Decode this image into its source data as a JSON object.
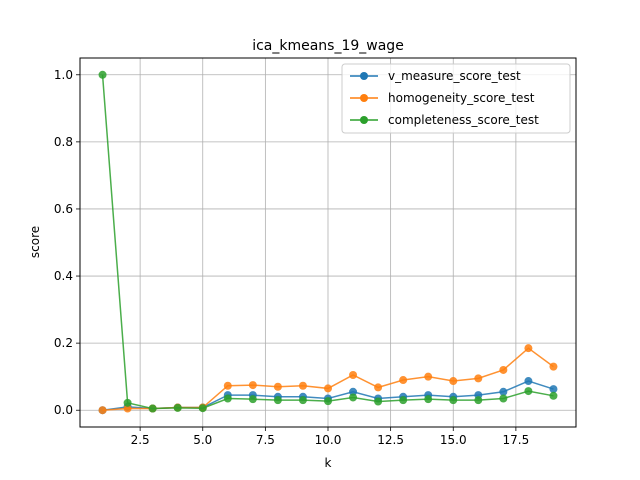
{
  "chart_data": {
    "type": "line",
    "title": "ica_kmeans_19_wage",
    "xlabel": "k",
    "ylabel": "score",
    "xlim": [
      0.1,
      19.9
    ],
    "ylim": [
      -0.05,
      1.05
    ],
    "xticks": [
      2.5,
      5.0,
      7.5,
      10.0,
      12.5,
      15.0,
      17.5
    ],
    "xtick_labels": [
      "2.5",
      "5.0",
      "7.5",
      "10.0",
      "12.5",
      "15.0",
      "17.5"
    ],
    "yticks": [
      0.0,
      0.2,
      0.4,
      0.6,
      0.8,
      1.0
    ],
    "ytick_labels": [
      "0.0",
      "0.2",
      "0.4",
      "0.6",
      "0.8",
      "1.0"
    ],
    "grid": true,
    "legend_position": "top-right",
    "x": [
      1,
      2,
      3,
      4,
      5,
      6,
      7,
      8,
      9,
      10,
      11,
      12,
      13,
      14,
      15,
      16,
      17,
      18,
      19
    ],
    "series": [
      {
        "name": "v_measure_score_test",
        "color": "#1f77b4",
        "values": [
          0.0,
          0.01,
          0.005,
          0.008,
          0.008,
          0.045,
          0.045,
          0.04,
          0.04,
          0.035,
          0.055,
          0.035,
          0.04,
          0.045,
          0.04,
          0.045,
          0.055,
          0.087,
          0.063
        ]
      },
      {
        "name": "homogeneity_score_test",
        "color": "#ff7f0e",
        "values": [
          0.0,
          0.005,
          0.005,
          0.008,
          0.008,
          0.073,
          0.075,
          0.07,
          0.073,
          0.065,
          0.105,
          0.068,
          0.09,
          0.1,
          0.087,
          0.095,
          0.12,
          0.185,
          0.13
        ]
      },
      {
        "name": "completeness_score_test",
        "color": "#2ca02c",
        "values": [
          1.0,
          0.022,
          0.005,
          0.007,
          0.006,
          0.035,
          0.033,
          0.03,
          0.03,
          0.027,
          0.038,
          0.026,
          0.03,
          0.033,
          0.03,
          0.03,
          0.035,
          0.057,
          0.043
        ]
      }
    ]
  }
}
